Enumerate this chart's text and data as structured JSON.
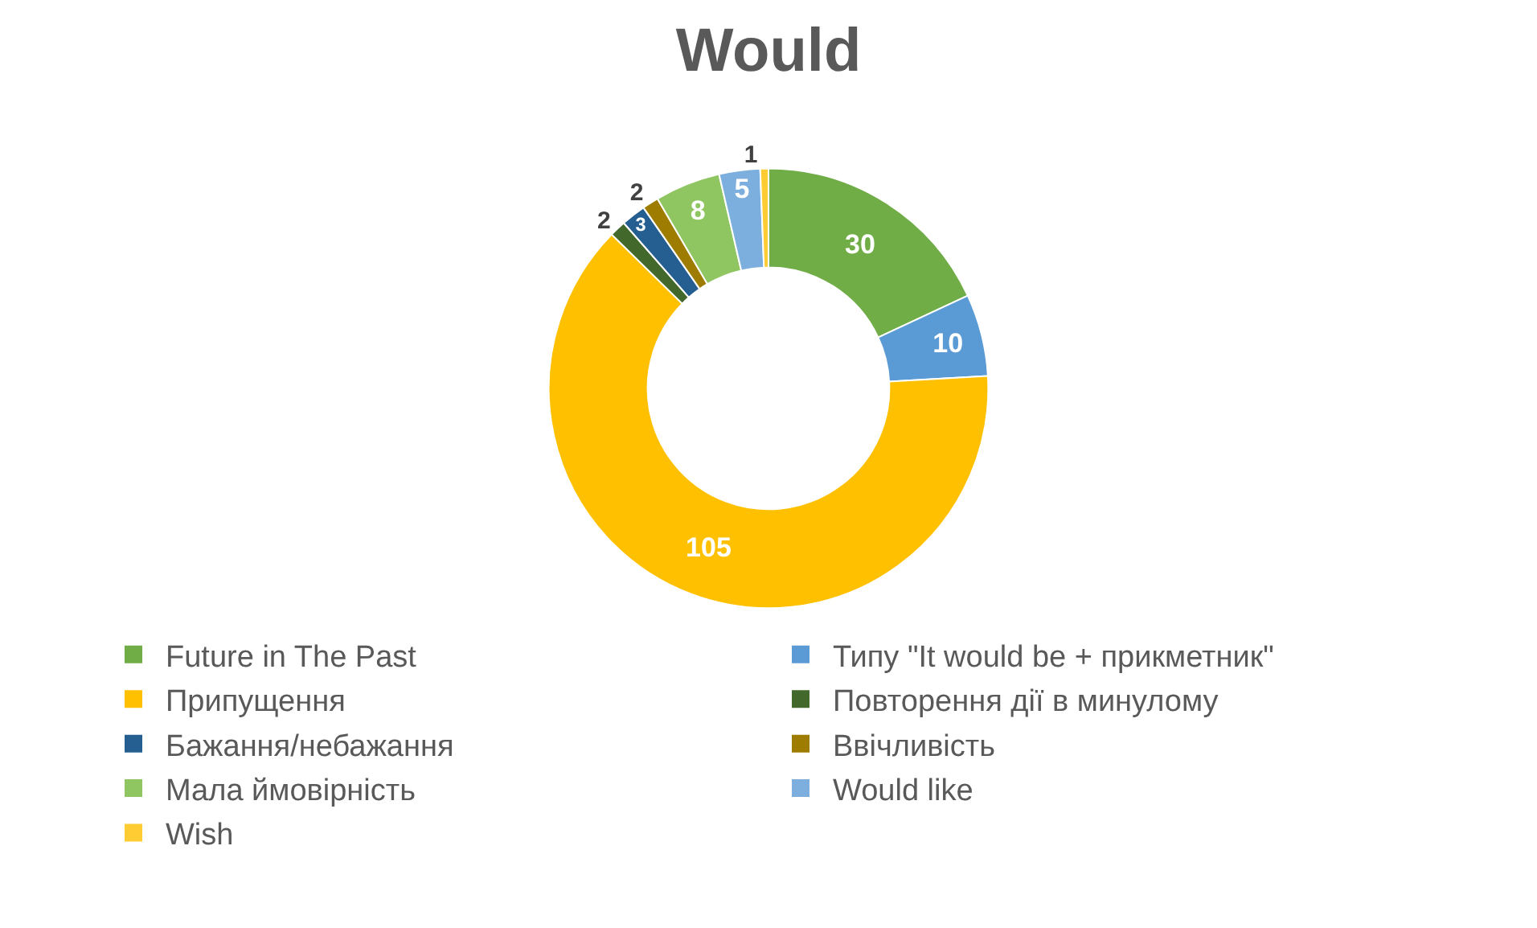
{
  "chart_data": {
    "type": "donut",
    "title": "Would",
    "categories": [
      "Future in The Past",
      "Типу \"It would be + прикметник\"",
      "Припущення",
      "Повторення дії в минулому",
      "Бажання/небажання",
      "Ввічливість",
      "Мала ймовірність",
      "Would like",
      "Wish"
    ],
    "values": [
      30,
      10,
      105,
      2,
      3,
      2,
      8,
      5,
      1
    ],
    "colors": [
      "#70ad47",
      "#5b9bd5",
      "#ffc000",
      "#43682b",
      "#255e91",
      "#9e7c00",
      "#8fc661",
      "#7cafdd",
      "#ffcd33"
    ],
    "data_labels": true,
    "legend": "bottom"
  }
}
